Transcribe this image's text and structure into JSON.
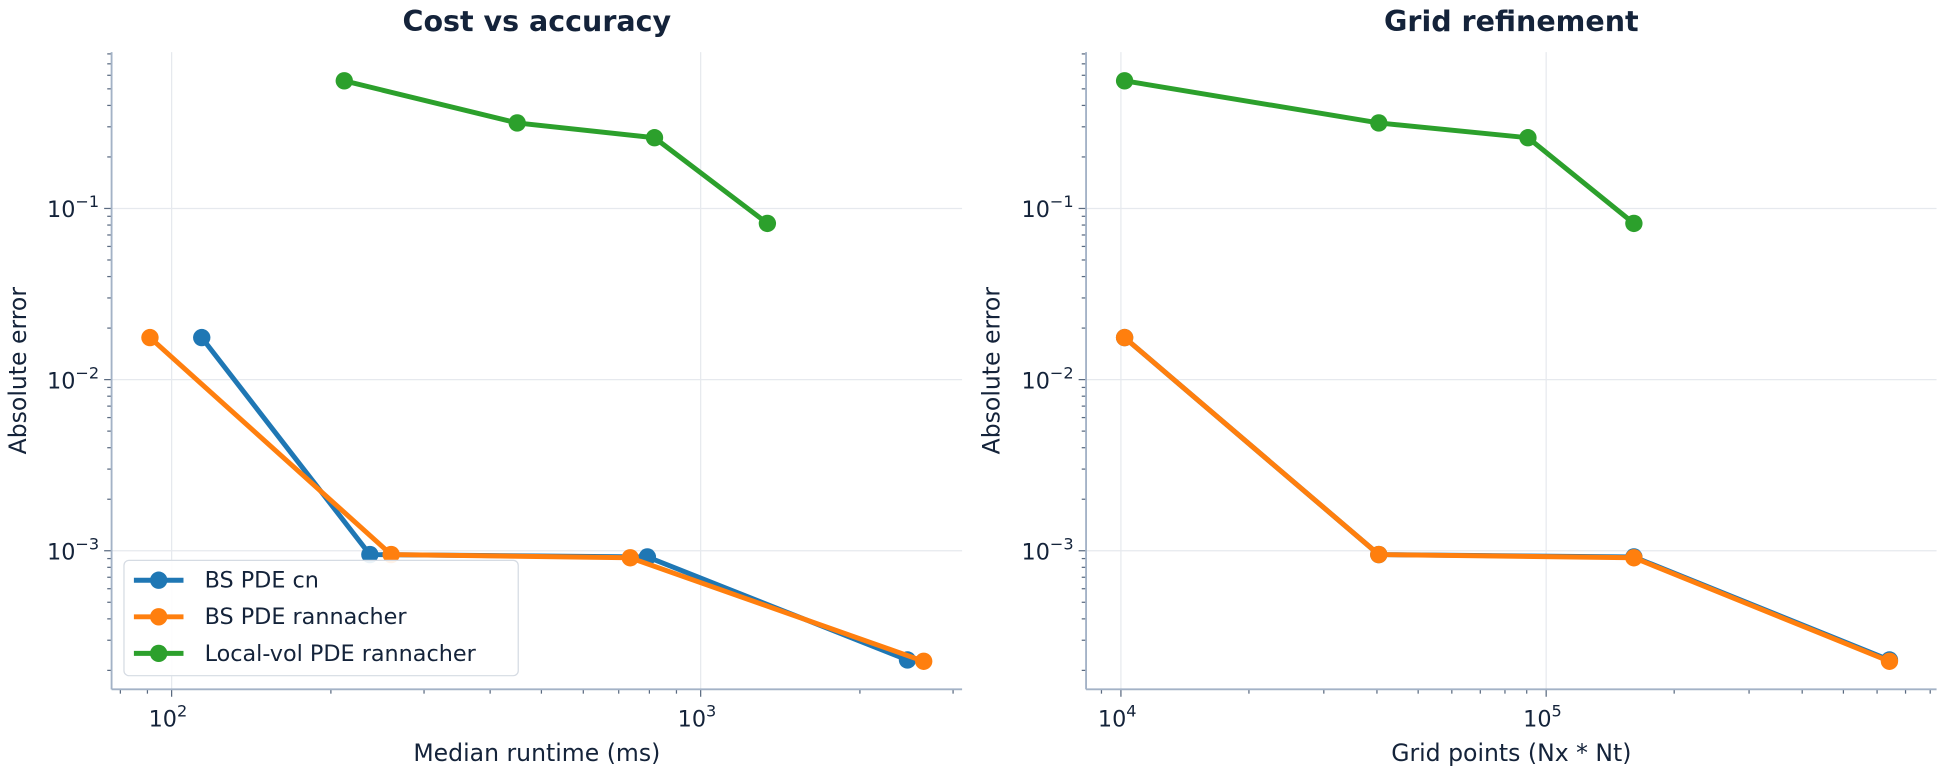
{
  "chart_data": [
    {
      "type": "line",
      "title": "Cost vs accuracy",
      "xlabel": "Median runtime (ms)",
      "ylabel": "Absolute error",
      "xscale": "log",
      "yscale": "log",
      "xlim": [
        77,
        3120
      ],
      "ylim": [
        0.000155,
        0.82
      ],
      "xticks": [
        {
          "value": 100,
          "base": "10",
          "exp": "2"
        },
        {
          "value": 1000,
          "base": "10",
          "exp": "3"
        }
      ],
      "yticks": [
        {
          "value": 0.1,
          "base": "10",
          "exp": "−1"
        },
        {
          "value": 0.01,
          "base": "10",
          "exp": "−2"
        },
        {
          "value": 0.001,
          "base": "10",
          "exp": "−3"
        }
      ],
      "grid": true,
      "legend": "lower-left",
      "series": [
        {
          "name": "BS PDE cn",
          "color": "#1f77b4",
          "x": [
            114,
            237,
            793,
            2460
          ],
          "y": [
            0.0176,
            0.00095,
            0.00092,
            0.00023
          ]
        },
        {
          "name": "BS PDE rannacher",
          "color": "#ff7f0e",
          "x": [
            91,
            260,
            736,
            2640
          ],
          "y": [
            0.0176,
            0.00095,
            0.00091,
            0.000226
          ]
        },
        {
          "name": "Local-vol PDE rannacher",
          "color": "#2ca02c",
          "x": [
            212,
            450,
            818,
            1337
          ],
          "y": [
            0.557,
            0.316,
            0.259,
            0.0818
          ]
        }
      ]
    },
    {
      "type": "line",
      "title": "Grid refinement",
      "xlabel": "Grid points (Nx * Nt)",
      "ylabel": "Absolute error",
      "xscale": "log",
      "yscale": "log",
      "xlim": [
        8280,
        828000
      ],
      "ylim": [
        0.000155,
        0.82
      ],
      "xticks": [
        {
          "value": 10000,
          "base": "10",
          "exp": "4"
        },
        {
          "value": 100000,
          "base": "10",
          "exp": "5"
        }
      ],
      "yticks": [
        {
          "value": 0.1,
          "base": "10",
          "exp": "−1"
        },
        {
          "value": 0.01,
          "base": "10",
          "exp": "−2"
        },
        {
          "value": 0.001,
          "base": "10",
          "exp": "−3"
        }
      ],
      "grid": true,
      "series": [
        {
          "color": "#1f77b4",
          "x": [
            10201,
            40401,
            160801,
            641601
          ],
          "y": [
            0.0176,
            0.00095,
            0.00092,
            0.00023
          ]
        },
        {
          "color": "#ff7f0e",
          "x": [
            10201,
            40401,
            160801,
            641601
          ],
          "y": [
            0.0176,
            0.00095,
            0.00091,
            0.000226
          ]
        },
        {
          "color": "#2ca02c",
          "x": [
            10201,
            40401,
            90601,
            160801
          ],
          "y": [
            0.557,
            0.316,
            0.259,
            0.0818
          ]
        }
      ]
    }
  ]
}
